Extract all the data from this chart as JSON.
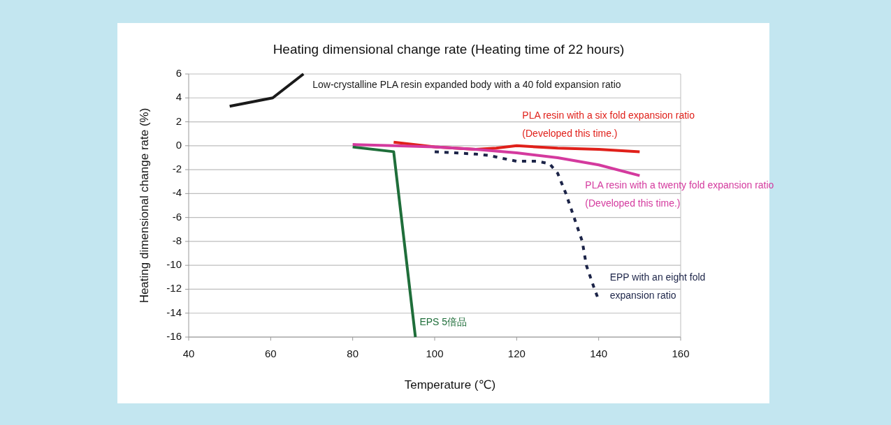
{
  "chart_data": {
    "type": "line",
    "title": "Heating dimensional change rate (Heating time of 22 hours)",
    "xlabel": "Temperature (℃)",
    "ylabel": "Heating dimensional change rate (%)",
    "xlim": [
      40,
      160
    ],
    "xticks": [
      40,
      60,
      80,
      100,
      120,
      140,
      160
    ],
    "ylim": [
      -16,
      6
    ],
    "yticks": [
      -16,
      -14,
      -12,
      -10,
      -8,
      -6,
      -4,
      -2,
      0,
      2,
      4,
      6
    ],
    "grid": "y",
    "marker": "none",
    "series": [
      {
        "name": "Low-crystalline PLA resin expanded body with a 40 fold expansion ratio",
        "color": "#1a1a1a",
        "x": [
          50,
          60.5,
          68
        ],
        "values": [
          3.3,
          4.0,
          6.0
        ]
      },
      {
        "name": "EPS 5倍品",
        "color": "#1f6e3a",
        "x": [
          80,
          90,
          95.3
        ],
        "values": [
          -0.1,
          -0.5,
          -16
        ]
      },
      {
        "name": "PLA resin with a six fold expansion ratio\n(Developed this time.)",
        "color": "#e0201a",
        "x": [
          90,
          100,
          110,
          115,
          120,
          130,
          140,
          150
        ],
        "values": [
          0.3,
          -0.1,
          -0.3,
          -0.2,
          0,
          -0.2,
          -0.3,
          -0.5
        ]
      },
      {
        "name": "PLA resin with a twenty fold expansion ratio\n(Developed this time.)",
        "color": "#d43a9e",
        "x": [
          80,
          90,
          100,
          110,
          120,
          130,
          140,
          150
        ],
        "values": [
          0.1,
          0,
          -0.1,
          -0.3,
          -0.6,
          -1.0,
          -1.6,
          -2.5
        ]
      },
      {
        "name": "EPP with an eight fold\nexpansion ratio",
        "color": "#1c2448",
        "line_style": "dotted",
        "x": [
          100,
          105,
          110,
          113,
          120,
          125,
          128,
          130,
          132,
          134,
          136,
          137,
          139,
          140
        ],
        "values": [
          -0.5,
          -0.6,
          -0.7,
          -0.8,
          -1.3,
          -1.3,
          -1.5,
          -2.3,
          -4,
          -6,
          -8,
          -10,
          -12,
          -12.9
        ]
      }
    ]
  }
}
